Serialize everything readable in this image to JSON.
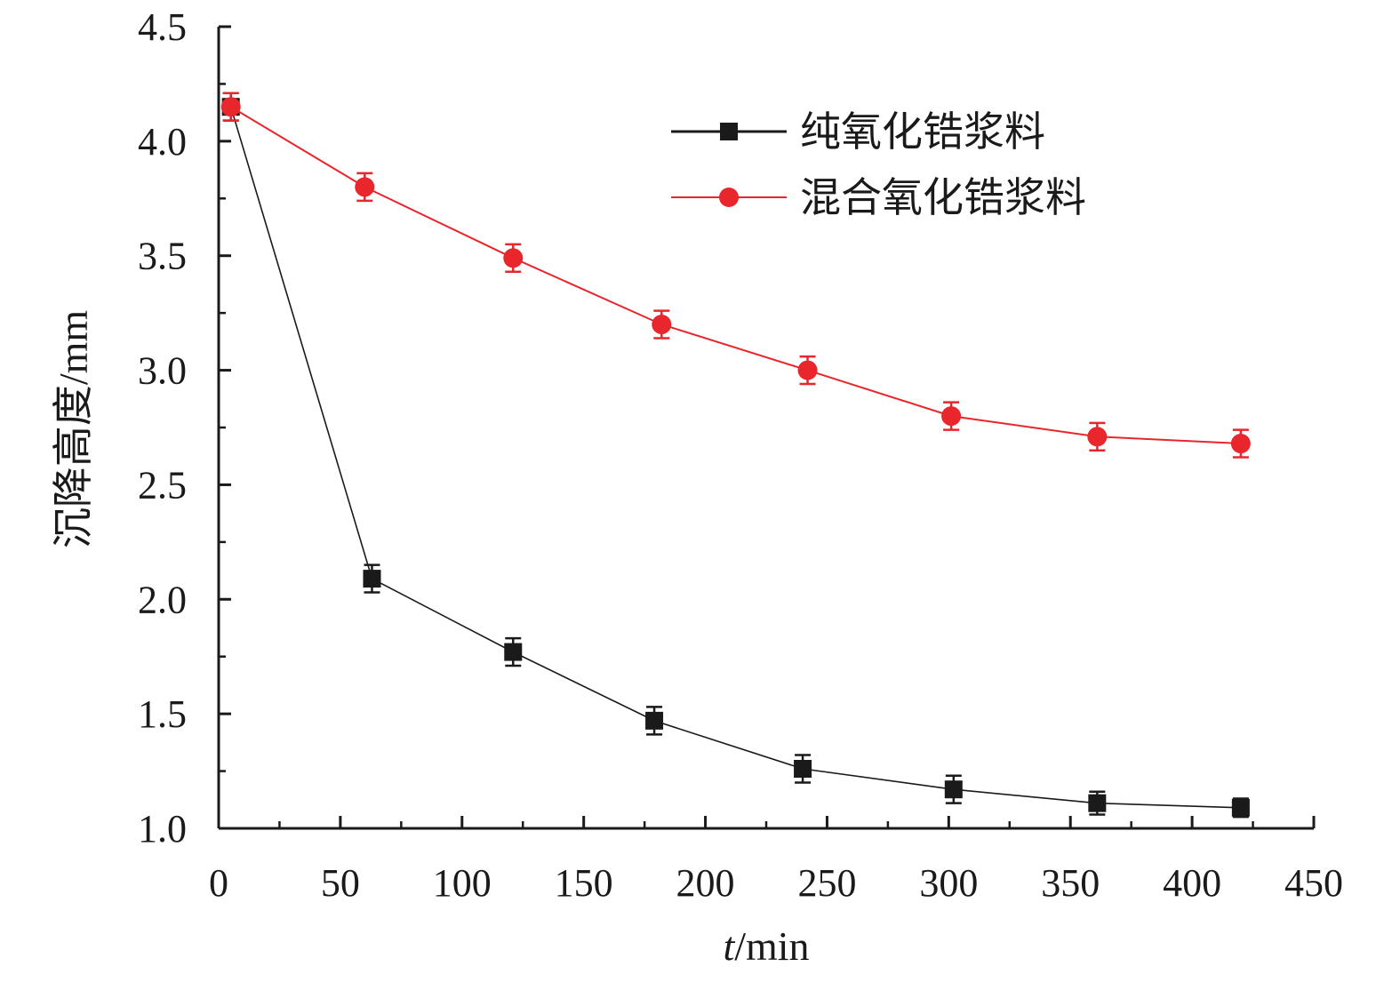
{
  "chart_data": {
    "type": "line",
    "xlabel_italic": "t",
    "xlabel_rest": "/min",
    "ylabel": "沉降高度/mm",
    "xlim": [
      0,
      450
    ],
    "ylim": [
      1.0,
      4.5
    ],
    "x_ticks": [
      0,
      50,
      100,
      150,
      200,
      250,
      300,
      350,
      400,
      450
    ],
    "y_ticks": [
      1.0,
      1.5,
      2.0,
      2.5,
      3.0,
      3.5,
      4.0,
      4.5
    ],
    "y_tick_labels": [
      "1.0",
      "1.5",
      "2.0",
      "2.5",
      "3.0",
      "3.5",
      "4.0",
      "4.5"
    ],
    "legend_position": "top-right",
    "series": [
      {
        "name": "纯氧化锆浆料",
        "color": "#1a1a1a",
        "marker": "square",
        "x": [
          5,
          63,
          121,
          179,
          240,
          302,
          361,
          420
        ],
        "y": [
          4.15,
          2.09,
          1.77,
          1.47,
          1.26,
          1.17,
          1.11,
          1.09
        ],
        "err": [
          0.06,
          0.06,
          0.06,
          0.06,
          0.06,
          0.06,
          0.05,
          0.04
        ]
      },
      {
        "name": "混合氧化锆浆料",
        "color": "#e8262b",
        "marker": "circle",
        "x": [
          5,
          60,
          121,
          182,
          242,
          301,
          361,
          420
        ],
        "y": [
          4.15,
          3.8,
          3.49,
          3.2,
          3.0,
          2.8,
          2.71,
          2.68
        ],
        "err": [
          0.06,
          0.06,
          0.06,
          0.06,
          0.06,
          0.06,
          0.06,
          0.06
        ]
      }
    ]
  }
}
